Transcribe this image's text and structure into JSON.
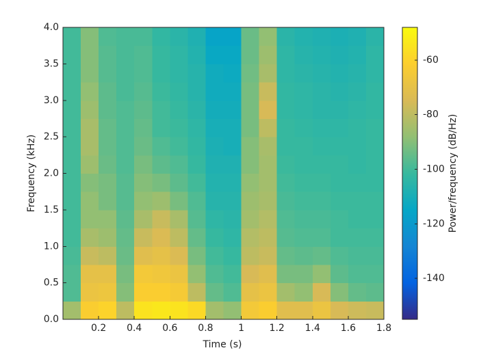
{
  "chart_data": {
    "type": "heatmap",
    "xlabel": "Time (s)",
    "ylabel": "Frequency (kHz)",
    "colorbar_label": "Power/frequency (dB/Hz)",
    "colormap": "parula",
    "xlim": [
      0,
      1.8
    ],
    "xticks": [
      0.2,
      0.4,
      0.6,
      0.8,
      1.0,
      1.2,
      1.4,
      1.6,
      1.8
    ],
    "ylim": [
      0,
      4
    ],
    "yticks": [
      {
        "value": 0,
        "label": "0.0"
      },
      0.5,
      {
        "value": 1,
        "label": "1.0"
      },
      1.5,
      {
        "value": 2,
        "label": "2.0"
      },
      2.5,
      {
        "value": 3,
        "label": "3.0"
      },
      3.5,
      {
        "value": 4,
        "label": "4.0"
      }
    ],
    "clim": [
      -155,
      -48
    ],
    "cticks": [
      -60,
      -80,
      -100,
      -120,
      -140
    ],
    "xbins": [
      0,
      0.1,
      0.2,
      0.3,
      0.4,
      0.5,
      0.6,
      0.7,
      0.8,
      0.9,
      1.0,
      1.1,
      1.2,
      1.3,
      1.4,
      1.5,
      1.6,
      1.7,
      1.8
    ],
    "ybins": [
      0,
      0.25,
      0.5,
      0.75,
      1.0,
      1.25,
      1.5,
      1.75,
      2.0,
      2.25,
      2.5,
      2.75,
      3.0,
      3.25,
      3.5,
      3.75,
      4.0
    ],
    "z": [
      [
        -85,
        -62,
        -60,
        -80,
        -55,
        -54,
        -55,
        -58,
        -85,
        -88,
        -65,
        -62,
        -72,
        -72,
        -68,
        -75,
        -77,
        -78
      ],
      [
        -98,
        -68,
        -67,
        -90,
        -62,
        -62,
        -64,
        -80,
        -95,
        -98,
        -70,
        -68,
        -85,
        -88,
        -75,
        -90,
        -95,
        -96
      ],
      [
        -98,
        -70,
        -70,
        -92,
        -65,
        -66,
        -68,
        -88,
        -98,
        -100,
        -75,
        -72,
        -92,
        -92,
        -88,
        -96,
        -98,
        -98
      ],
      [
        -99,
        -78,
        -80,
        -94,
        -72,
        -70,
        -74,
        -92,
        -100,
        -102,
        -80,
        -78,
        -95,
        -96,
        -95,
        -98,
        -99,
        -99
      ],
      [
        -100,
        -84,
        -86,
        -95,
        -78,
        -74,
        -80,
        -95,
        -102,
        -104,
        -82,
        -80,
        -97,
        -98,
        -98,
        -100,
        -100,
        -100
      ],
      [
        -100,
        -88,
        -88,
        -96,
        -84,
        -78,
        -84,
        -97,
        -104,
        -105,
        -85,
        -82,
        -98,
        -99,
        -99,
        -100,
        -101,
        -101
      ],
      [
        -100,
        -88,
        -92,
        -97,
        -88,
        -86,
        -92,
        -98,
        -106,
        -106,
        -86,
        -84,
        -99,
        -100,
        -100,
        -101,
        -101,
        -101
      ],
      [
        -100,
        -90,
        -92,
        -97,
        -90,
        -92,
        -96,
        -100,
        -107,
        -107,
        -88,
        -85,
        -100,
        -101,
        -101,
        -102,
        -102,
        -102
      ],
      [
        -100,
        -86,
        -94,
        -98,
        -92,
        -96,
        -98,
        -102,
        -108,
        -108,
        -90,
        -85,
        -101,
        -102,
        -102,
        -102,
        -103,
        -102
      ],
      [
        -100,
        -84,
        -95,
        -98,
        -94,
        -98,
        -100,
        -103,
        -109,
        -110,
        -90,
        -84,
        -102,
        -102,
        -103,
        -103,
        -103,
        -102
      ],
      [
        -100,
        -84,
        -95,
        -98,
        -95,
        -100,
        -101,
        -104,
        -110,
        -110,
        -92,
        -80,
        -102,
        -103,
        -104,
        -104,
        -103,
        -102
      ],
      [
        -100,
        -86,
        -96,
        -98,
        -96,
        -100,
        -102,
        -105,
        -111,
        -111,
        -92,
        -75,
        -103,
        -104,
        -105,
        -105,
        -104,
        -103
      ],
      [
        -100,
        -88,
        -96,
        -99,
        -97,
        -101,
        -103,
        -106,
        -112,
        -112,
        -92,
        -78,
        -103,
        -104,
        -105,
        -106,
        -105,
        -103
      ],
      [
        -100,
        -90,
        -97,
        -99,
        -98,
        -102,
        -104,
        -106,
        -112,
        -113,
        -93,
        -84,
        -104,
        -105,
        -106,
        -107,
        -106,
        -104
      ],
      [
        -100,
        -90,
        -97,
        -99,
        -98,
        -102,
        -104,
        -107,
        -114,
        -114,
        -94,
        -86,
        -104,
        -106,
        -107,
        -108,
        -107,
        -104
      ],
      [
        -100,
        -90,
        -98,
        -99,
        -99,
        -103,
        -105,
        -108,
        -116,
        -116,
        -94,
        -88,
        -105,
        -107,
        -108,
        -109,
        -108,
        -105
      ]
    ]
  }
}
